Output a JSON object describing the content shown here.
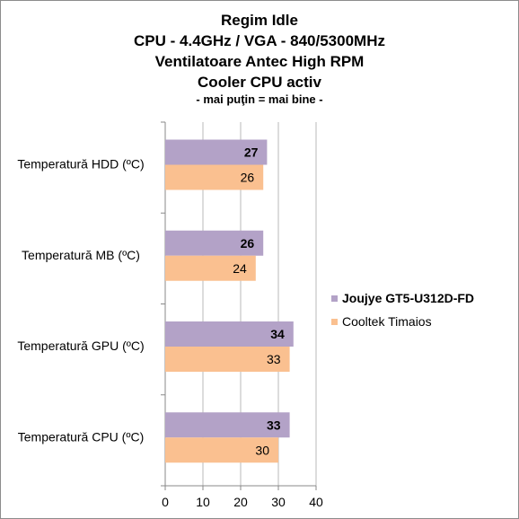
{
  "chart_data": {
    "type": "bar",
    "orientation": "horizontal",
    "title_lines": [
      "Regim Idle",
      "CPU - 4.4GHz / VGA - 840/5300MHz",
      "Ventilatoare Antec High RPM",
      "Cooler CPU activ"
    ],
    "subtitle": "- mai puţin = mai bine -",
    "categories": [
      "Temperatură  HDD (ºC)",
      "Temperatură  MB (ºC)",
      "Temperatură  GPU (ºC)",
      "Temperatură  CPU (ºC)"
    ],
    "series": [
      {
        "name": "Joujye GT5-U312D-FD",
        "values": [
          27,
          26,
          34,
          33
        ],
        "color": "#b3a2c7",
        "bold": true
      },
      {
        "name": "Cooltek Timaios",
        "values": [
          26,
          24,
          33,
          30
        ],
        "color": "#fac090",
        "bold": false
      }
    ],
    "xlim": [
      0,
      40
    ],
    "x_ticks": [
      0,
      10,
      20,
      30,
      40
    ],
    "grid": true,
    "legend_position": "right"
  }
}
